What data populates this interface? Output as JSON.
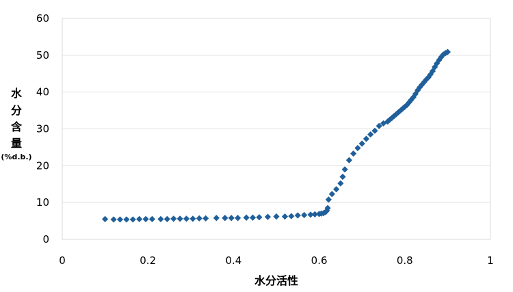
{
  "chart_data": {
    "type": "scatter",
    "xlabel": "水分活性",
    "ylabel": [
      "水",
      "分",
      "含",
      "量"
    ],
    "ylabel_unit": "(%d.b.)",
    "xlim": [
      0,
      1
    ],
    "ylim": [
      0,
      60
    ],
    "xticks": [
      0,
      0.2,
      0.4,
      0.6,
      0.8,
      1
    ],
    "xtick_labels": [
      "0",
      "0.2",
      "0.4",
      "0.6",
      "0.8",
      "1"
    ],
    "yticks": [
      0,
      10,
      20,
      30,
      40,
      50,
      60
    ],
    "ytick_labels": [
      "0",
      "10",
      "20",
      "30",
      "40",
      "50",
      "60"
    ],
    "grid": "horizontal",
    "marker": "diamond",
    "color": "#1f5f9a",
    "x": [
      0.1,
      0.12,
      0.135,
      0.15,
      0.165,
      0.18,
      0.195,
      0.21,
      0.23,
      0.245,
      0.26,
      0.275,
      0.29,
      0.305,
      0.32,
      0.335,
      0.36,
      0.38,
      0.395,
      0.41,
      0.43,
      0.445,
      0.46,
      0.48,
      0.5,
      0.52,
      0.535,
      0.55,
      0.565,
      0.58,
      0.59,
      0.6,
      0.605,
      0.61,
      0.615,
      0.618,
      0.62,
      0.622,
      0.63,
      0.64,
      0.65,
      0.655,
      0.66,
      0.67,
      0.68,
      0.69,
      0.7,
      0.71,
      0.72,
      0.73,
      0.74,
      0.75,
      0.76,
      0.765,
      0.77,
      0.775,
      0.78,
      0.785,
      0.79,
      0.795,
      0.8,
      0.805,
      0.81,
      0.815,
      0.82,
      0.825,
      0.83,
      0.835,
      0.84,
      0.845,
      0.85,
      0.855,
      0.86,
      0.865,
      0.87,
      0.875,
      0.88,
      0.885,
      0.89,
      0.895,
      0.9
    ],
    "y": [
      5.5,
      5.4,
      5.4,
      5.4,
      5.4,
      5.5,
      5.5,
      5.5,
      5.5,
      5.5,
      5.6,
      5.6,
      5.6,
      5.6,
      5.7,
      5.7,
      5.8,
      5.8,
      5.8,
      5.8,
      5.9,
      5.9,
      6.0,
      6.1,
      6.2,
      6.2,
      6.3,
      6.5,
      6.6,
      6.7,
      6.8,
      6.9,
      7.0,
      7.1,
      7.4,
      7.8,
      8.5,
      10.8,
      12.3,
      13.6,
      15.2,
      17.0,
      19.0,
      21.5,
      23.3,
      24.8,
      26.0,
      27.3,
      28.5,
      29.5,
      30.8,
      31.5,
      32.0,
      32.5,
      33.0,
      33.5,
      34.0,
      34.5,
      35.0,
      35.5,
      36.0,
      36.5,
      37.2,
      37.9,
      38.6,
      39.5,
      40.5,
      41.3,
      42.0,
      42.7,
      43.4,
      44.0,
      44.8,
      45.7,
      46.8,
      47.8,
      48.7,
      49.5,
      50.2,
      50.6,
      50.9
    ]
  }
}
